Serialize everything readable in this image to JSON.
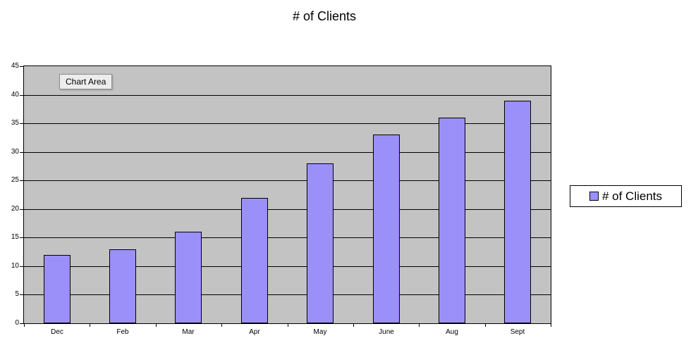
{
  "title": "# of Clients",
  "tooltip": {
    "label": "Chart Area"
  },
  "legend": {
    "label": "# of Clients",
    "position": "right"
  },
  "colors": {
    "bar_fill": "#9b90fa",
    "bar_border": "#000000",
    "plot_bg": "#c3c3c3",
    "grid": "#000000",
    "legend_border": "#000000",
    "tooltip_bg": "#ededed",
    "tooltip_border": "#8f8f8f"
  },
  "y_axis_ticks": [
    "0",
    "5",
    "10",
    "15",
    "20",
    "25",
    "30",
    "35",
    "40",
    "45"
  ],
  "chart_data": {
    "type": "bar",
    "title": "# of Clients",
    "categories": [
      "Dec",
      "Feb",
      "Mar",
      "Apr",
      "May",
      "June",
      "Aug",
      "Sept"
    ],
    "series": [
      {
        "name": "# of Clients",
        "values": [
          12,
          13,
          16,
          22,
          28,
          33,
          36,
          39
        ]
      }
    ],
    "xlabel": "",
    "ylabel": "",
    "ylim": [
      0,
      45
    ],
    "ytick_interval": 5,
    "grid": true,
    "legend_position": "right"
  }
}
